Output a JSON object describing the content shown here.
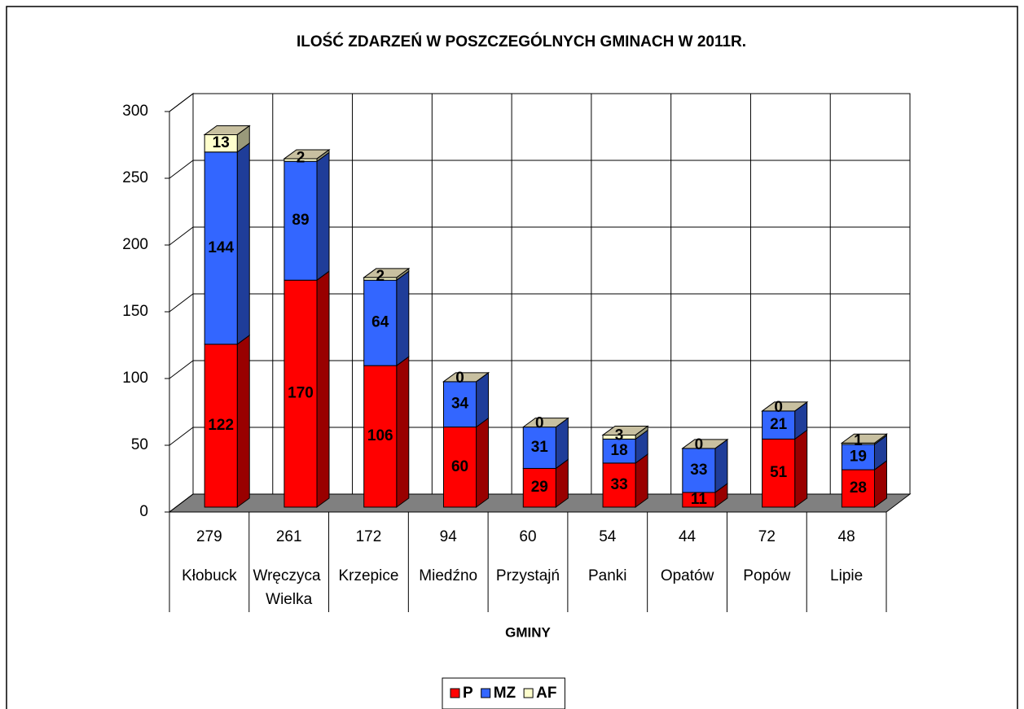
{
  "chart_data": {
    "type": "bar3d_stacked",
    "title": "ILOŚĆ ZDARZEŃ W POSZCZEGÓLNYCH GMINACH W 2011R.",
    "xlabel": "GMINY",
    "categories": [
      "Kłobuck",
      "Wręczyca Wielka",
      "Krzepice",
      "Miedźno",
      "Przystajń",
      "Panki",
      "Opatów",
      "Popów",
      "Lipie"
    ],
    "totals": [
      279,
      261,
      172,
      94,
      60,
      54,
      44,
      72,
      48
    ],
    "series": [
      {
        "name": "P",
        "color": "#ff0000",
        "values": [
          122,
          170,
          106,
          60,
          29,
          33,
          11,
          51,
          28
        ]
      },
      {
        "name": "MZ",
        "color": "#3366ff",
        "values": [
          144,
          89,
          64,
          34,
          31,
          18,
          33,
          21,
          19
        ]
      },
      {
        "name": "AF",
        "color": "#ffffcc",
        "values": [
          13,
          2,
          2,
          0,
          0,
          3,
          0,
          0,
          1
        ]
      }
    ],
    "ylim": [
      0,
      300
    ],
    "yticks": [
      0,
      50,
      100,
      150,
      200,
      250,
      300
    ],
    "grid": true,
    "legend": "bottom"
  }
}
